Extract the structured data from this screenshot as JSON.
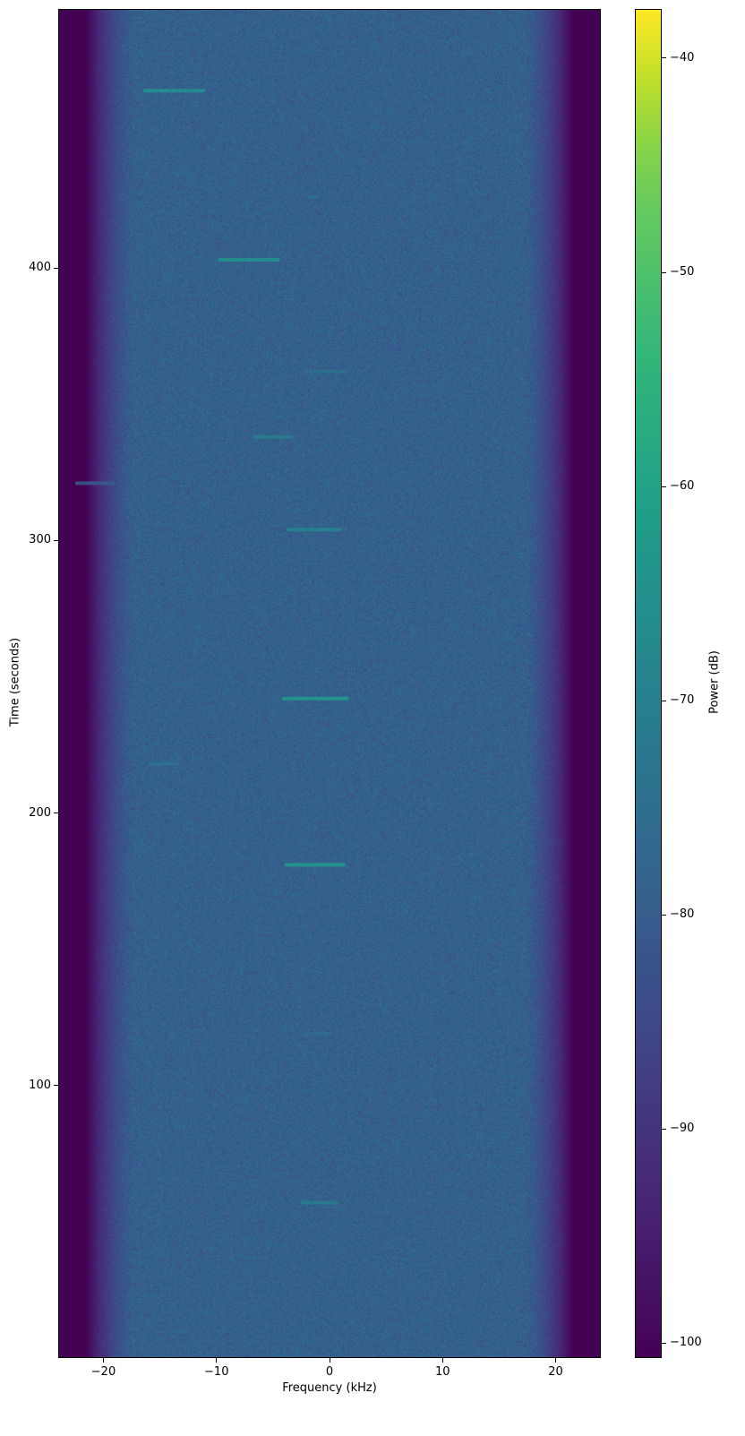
{
  "chart_data": {
    "type": "heatmap",
    "subtype": "spectrogram",
    "colormap": "viridis",
    "xlabel": "Frequency (kHz)",
    "ylabel": "Time (seconds)",
    "colorbar_label": "Power (dB)",
    "xlim": [
      -24,
      24
    ],
    "ylim": [
      0,
      495
    ],
    "clim": [
      -100.7,
      -37.7
    ],
    "xticks": [
      -20,
      -10,
      0,
      10,
      20
    ],
    "xtick_labels": [
      "−20",
      "−10",
      "0",
      "10",
      "20"
    ],
    "yticks": [
      100,
      200,
      300,
      400
    ],
    "ytick_labels": [
      "100",
      "200",
      "300",
      "400"
    ],
    "cticks": [
      -40,
      -50,
      -60,
      -70,
      -80,
      -90,
      -100
    ],
    "ctick_labels": [
      "−40",
      "−50",
      "−60",
      "−70",
      "−80",
      "−90",
      "−100"
    ],
    "noise_floor_db": -79,
    "band_edge_db": -101,
    "passband_khz": [
      -17,
      17
    ],
    "bursts": [
      {
        "time": 465,
        "freq_start": -16.5,
        "freq_end": -11.0,
        "power_db": -64
      },
      {
        "time": 426,
        "freq_start": -2.0,
        "freq_end": -1.0,
        "power_db": -74
      },
      {
        "time": 403,
        "freq_start": -9.9,
        "freq_end": -4.4,
        "power_db": -64
      },
      {
        "time": 362,
        "freq_start": -2.2,
        "freq_end": 1.5,
        "power_db": -74
      },
      {
        "time": 338,
        "freq_start": -6.8,
        "freq_end": -3.2,
        "power_db": -71
      },
      {
        "time": 321,
        "freq_start": -22.5,
        "freq_end": -19.0,
        "power_db": -80
      },
      {
        "time": 304,
        "freq_start": -3.8,
        "freq_end": 1.1,
        "power_db": -68
      },
      {
        "time": 242,
        "freq_start": -4.2,
        "freq_end": 1.7,
        "power_db": -62
      },
      {
        "time": 218,
        "freq_start": -16.0,
        "freq_end": -13.3,
        "power_db": -74
      },
      {
        "time": 181,
        "freq_start": -4.0,
        "freq_end": 1.4,
        "power_db": -62
      },
      {
        "time": 119,
        "freq_start": -2.2,
        "freq_end": 0.2,
        "power_db": -76
      },
      {
        "time": 57,
        "freq_start": -2.6,
        "freq_end": 0.8,
        "power_db": -70
      }
    ]
  }
}
